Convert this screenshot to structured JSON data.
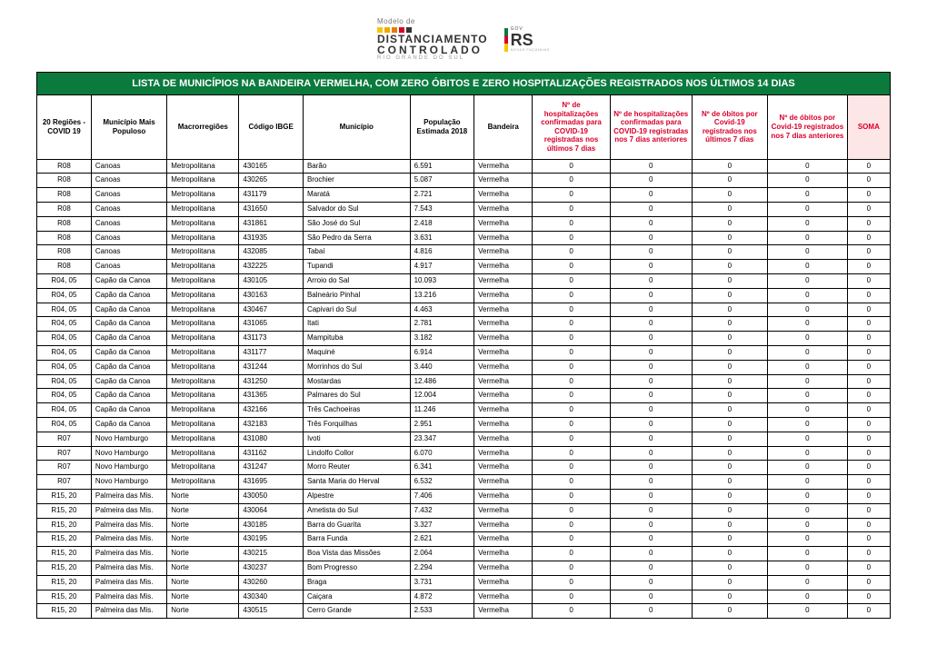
{
  "header": {
    "logo_left": {
      "line1": "Modelo de",
      "line2": "DISTANCIAMENTO",
      "line3": "CONTROLADO",
      "line4": "RIO GRANDE DO SUL",
      "dot_colors": [
        "#f6c700",
        "#f0a800",
        "#e77d00",
        "#d8002c",
        "#333333"
      ]
    },
    "logo_right": {
      "gov": "GOV",
      "rs": "RS",
      "tagline": "NOVAS FAÇANHAS"
    }
  },
  "table": {
    "title": "LISTA DE MUNICÍPIOS NA BANDEIRA VERMELHA, COM ZERO ÓBITOS E ZERO HOSPITALIZAÇÕES REGISTRADOS NOS ÚLTIMOS 14 DIAS",
    "columns": [
      {
        "label": "20 Regiões - COVID 19",
        "red": false,
        "pink": false
      },
      {
        "label": "Município Mais Populoso",
        "red": false,
        "pink": false
      },
      {
        "label": "Macrorregiões",
        "red": false,
        "pink": false
      },
      {
        "label": "Código IBGE",
        "red": false,
        "pink": false
      },
      {
        "label": "Município",
        "red": false,
        "pink": false
      },
      {
        "label": "População Estimada 2018",
        "red": false,
        "pink": false
      },
      {
        "label": "Bandeira",
        "red": false,
        "pink": false
      },
      {
        "label": "Nº de hospitalizações confirmadas para COVID-19 registradas nos últimos 7 dias",
        "red": true,
        "pink": false
      },
      {
        "label": "Nº de hospitalizações confirmadas para COVID-19 registradas nos 7 dias anteriores",
        "red": true,
        "pink": false
      },
      {
        "label": "Nº de óbitos por Covid-19 registrados nos últimos 7 dias",
        "red": true,
        "pink": false
      },
      {
        "label": "Nº de óbitos por Covid-19 registrados nos 7 dias anteriores",
        "red": true,
        "pink": false
      },
      {
        "label": "SOMA",
        "red": true,
        "pink": true
      }
    ],
    "rows": [
      [
        "R08",
        "Canoas",
        "Metropolitana",
        "430165",
        "Barão",
        "6.591",
        "Vermelha",
        "0",
        "0",
        "0",
        "0",
        "0"
      ],
      [
        "R08",
        "Canoas",
        "Metropolitana",
        "430265",
        "Brochier",
        "5.087",
        "Vermelha",
        "0",
        "0",
        "0",
        "0",
        "0"
      ],
      [
        "R08",
        "Canoas",
        "Metropolitana",
        "431179",
        "Maratá",
        "2.721",
        "Vermelha",
        "0",
        "0",
        "0",
        "0",
        "0"
      ],
      [
        "R08",
        "Canoas",
        "Metropolitana",
        "431650",
        "Salvador do Sul",
        "7.543",
        "Vermelha",
        "0",
        "0",
        "0",
        "0",
        "0"
      ],
      [
        "R08",
        "Canoas",
        "Metropolitana",
        "431861",
        "São José do Sul",
        "2.418",
        "Vermelha",
        "0",
        "0",
        "0",
        "0",
        "0"
      ],
      [
        "R08",
        "Canoas",
        "Metropolitana",
        "431935",
        "São Pedro da Serra",
        "3.631",
        "Vermelha",
        "0",
        "0",
        "0",
        "0",
        "0"
      ],
      [
        "R08",
        "Canoas",
        "Metropolitana",
        "432085",
        "Tabaí",
        "4.816",
        "Vermelha",
        "0",
        "0",
        "0",
        "0",
        "0"
      ],
      [
        "R08",
        "Canoas",
        "Metropolitana",
        "432225",
        "Tupandi",
        "4.917",
        "Vermelha",
        "0",
        "0",
        "0",
        "0",
        "0"
      ],
      [
        "R04, 05",
        "Capão da Canoa",
        "Metropolitana",
        "430105",
        "Arroio do Sal",
        "10.093",
        "Vermelha",
        "0",
        "0",
        "0",
        "0",
        "0"
      ],
      [
        "R04, 05",
        "Capão da Canoa",
        "Metropolitana",
        "430163",
        "Balneário Pinhal",
        "13.216",
        "Vermelha",
        "0",
        "0",
        "0",
        "0",
        "0"
      ],
      [
        "R04, 05",
        "Capão da Canoa",
        "Metropolitana",
        "430467",
        "Capivari do Sul",
        "4.463",
        "Vermelha",
        "0",
        "0",
        "0",
        "0",
        "0"
      ],
      [
        "R04, 05",
        "Capão da Canoa",
        "Metropolitana",
        "431065",
        "Itati",
        "2.781",
        "Vermelha",
        "0",
        "0",
        "0",
        "0",
        "0"
      ],
      [
        "R04, 05",
        "Capão da Canoa",
        "Metropolitana",
        "431173",
        "Mampituba",
        "3.182",
        "Vermelha",
        "0",
        "0",
        "0",
        "0",
        "0"
      ],
      [
        "R04, 05",
        "Capão da Canoa",
        "Metropolitana",
        "431177",
        "Maquiné",
        "6.914",
        "Vermelha",
        "0",
        "0",
        "0",
        "0",
        "0"
      ],
      [
        "R04, 05",
        "Capão da Canoa",
        "Metropolitana",
        "431244",
        "Morrinhos do Sul",
        "3.440",
        "Vermelha",
        "0",
        "0",
        "0",
        "0",
        "0"
      ],
      [
        "R04, 05",
        "Capão da Canoa",
        "Metropolitana",
        "431250",
        "Mostardas",
        "12.486",
        "Vermelha",
        "0",
        "0",
        "0",
        "0",
        "0"
      ],
      [
        "R04, 05",
        "Capão da Canoa",
        "Metropolitana",
        "431365",
        "Palmares do Sul",
        "12.004",
        "Vermelha",
        "0",
        "0",
        "0",
        "0",
        "0"
      ],
      [
        "R04, 05",
        "Capão da Canoa",
        "Metropolitana",
        "432166",
        "Três Cachoeiras",
        "11.246",
        "Vermelha",
        "0",
        "0",
        "0",
        "0",
        "0"
      ],
      [
        "R04, 05",
        "Capão da Canoa",
        "Metropolitana",
        "432183",
        "Três Forquilhas",
        "2.951",
        "Vermelha",
        "0",
        "0",
        "0",
        "0",
        "0"
      ],
      [
        "R07",
        "Novo Hamburgo",
        "Metropolitana",
        "431080",
        "Ivoti",
        "23.347",
        "Vermelha",
        "0",
        "0",
        "0",
        "0",
        "0"
      ],
      [
        "R07",
        "Novo Hamburgo",
        "Metropolitana",
        "431162",
        "Lindolfo Collor",
        "6.070",
        "Vermelha",
        "0",
        "0",
        "0",
        "0",
        "0"
      ],
      [
        "R07",
        "Novo Hamburgo",
        "Metropolitana",
        "431247",
        "Morro Reuter",
        "6.341",
        "Vermelha",
        "0",
        "0",
        "0",
        "0",
        "0"
      ],
      [
        "R07",
        "Novo Hamburgo",
        "Metropolitana",
        "431695",
        "Santa Maria do Herval",
        "6.532",
        "Vermelha",
        "0",
        "0",
        "0",
        "0",
        "0"
      ],
      [
        "R15, 20",
        "Palmeira das Mis.",
        "Norte",
        "430050",
        "Alpestre",
        "7.406",
        "Vermelha",
        "0",
        "0",
        "0",
        "0",
        "0"
      ],
      [
        "R15, 20",
        "Palmeira das Mis.",
        "Norte",
        "430064",
        "Ametista do Sul",
        "7.432",
        "Vermelha",
        "0",
        "0",
        "0",
        "0",
        "0"
      ],
      [
        "R15, 20",
        "Palmeira das Mis.",
        "Norte",
        "430185",
        "Barra do Guarita",
        "3.327",
        "Vermelha",
        "0",
        "0",
        "0",
        "0",
        "0"
      ],
      [
        "R15, 20",
        "Palmeira das Mis.",
        "Norte",
        "430195",
        "Barra Funda",
        "2.621",
        "Vermelha",
        "0",
        "0",
        "0",
        "0",
        "0"
      ],
      [
        "R15, 20",
        "Palmeira das Mis.",
        "Norte",
        "430215",
        "Boa Vista das Missões",
        "2.064",
        "Vermelha",
        "0",
        "0",
        "0",
        "0",
        "0"
      ],
      [
        "R15, 20",
        "Palmeira das Mis.",
        "Norte",
        "430237",
        "Bom Progresso",
        "2.294",
        "Vermelha",
        "0",
        "0",
        "0",
        "0",
        "0"
      ],
      [
        "R15, 20",
        "Palmeira das Mis.",
        "Norte",
        "430260",
        "Braga",
        "3.731",
        "Vermelha",
        "0",
        "0",
        "0",
        "0",
        "0"
      ],
      [
        "R15, 20",
        "Palmeira das Mis.",
        "Norte",
        "430340",
        "Caiçara",
        "4.872",
        "Vermelha",
        "0",
        "0",
        "0",
        "0",
        "0"
      ],
      [
        "R15, 20",
        "Palmeira das Mis.",
        "Norte",
        "430515",
        "Cerro Grande",
        "2.533",
        "Vermelha",
        "0",
        "0",
        "0",
        "0",
        "0"
      ]
    ]
  }
}
